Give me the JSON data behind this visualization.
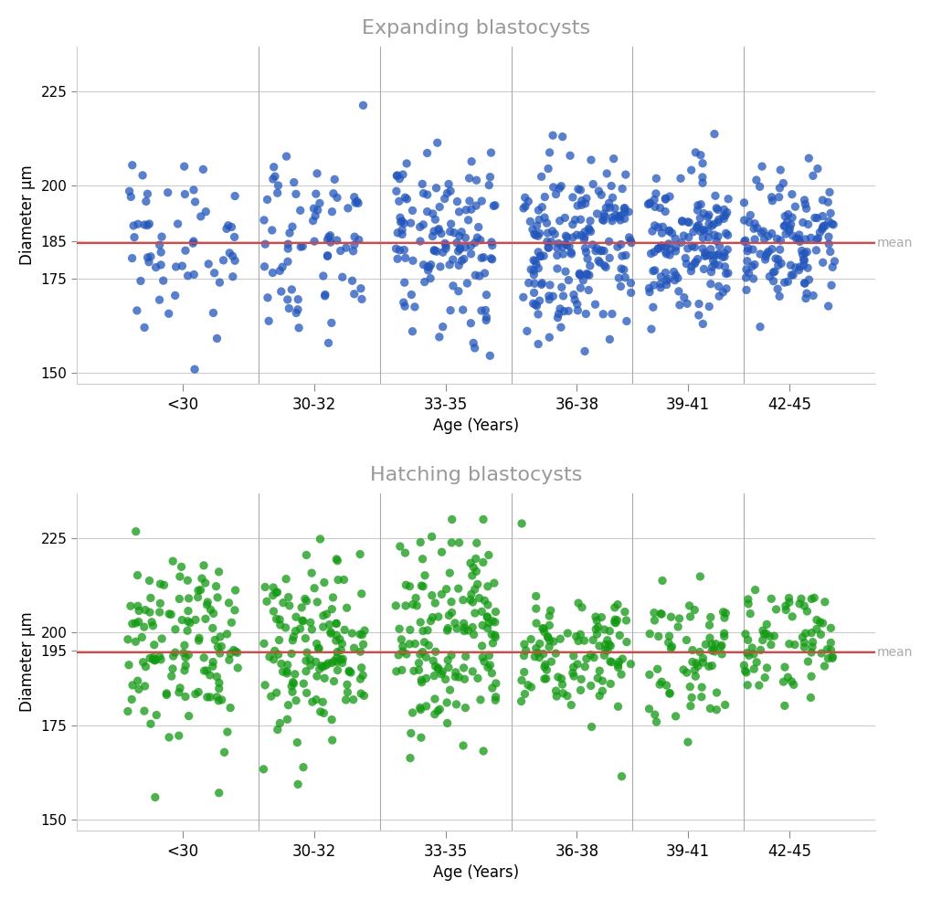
{
  "title1": "Expanding blastocysts",
  "title2": "Hatching blastocysts",
  "ylabel": "Diameter μm",
  "xlabel": "Age (Years)",
  "age_groups": [
    "<30",
    "30-32",
    "33-35",
    "36-38",
    "39-41",
    "42-45"
  ],
  "mean1": 184.5,
  "mean2": 194.5,
  "ylim": [
    147,
    237
  ],
  "yticks1": [
    150,
    175,
    185,
    200,
    225
  ],
  "yticks2": [
    150,
    175,
    195,
    200,
    225
  ],
  "color1": "#2255bb",
  "color2": "#119911",
  "mean_color": "#dd4444",
  "title_color": "#999999",
  "mean_label_color": "#aaaaaa",
  "bg_color": "#ffffff",
  "grid_color": "#cccccc",
  "seed1": 42,
  "seed2": 99,
  "group_counts1": [
    60,
    75,
    130,
    190,
    150,
    130
  ],
  "group_counts2": [
    130,
    140,
    150,
    110,
    70,
    75
  ],
  "group_centers": [
    1.0,
    2.3,
    3.6,
    4.9,
    6.0,
    7.0
  ],
  "group_widths": [
    1.1,
    1.0,
    1.0,
    1.1,
    0.8,
    0.9
  ],
  "group_means1": [
    185,
    183,
    184,
    185,
    184,
    185
  ],
  "group_stds1": [
    13,
    14,
    12,
    11,
    10,
    9
  ],
  "group_means2": [
    196,
    195,
    197,
    195,
    194,
    195
  ],
  "group_stds2": [
    13,
    13,
    13,
    9,
    9,
    8
  ],
  "separator_positions": [
    1.75,
    2.95,
    4.25,
    5.45,
    6.55
  ],
  "tick_positions": [
    1.0,
    2.3,
    3.6,
    4.9,
    6.0,
    7.0
  ],
  "xlim": [
    -0.05,
    7.85
  ],
  "marker_size": 45,
  "alpha": 0.75
}
